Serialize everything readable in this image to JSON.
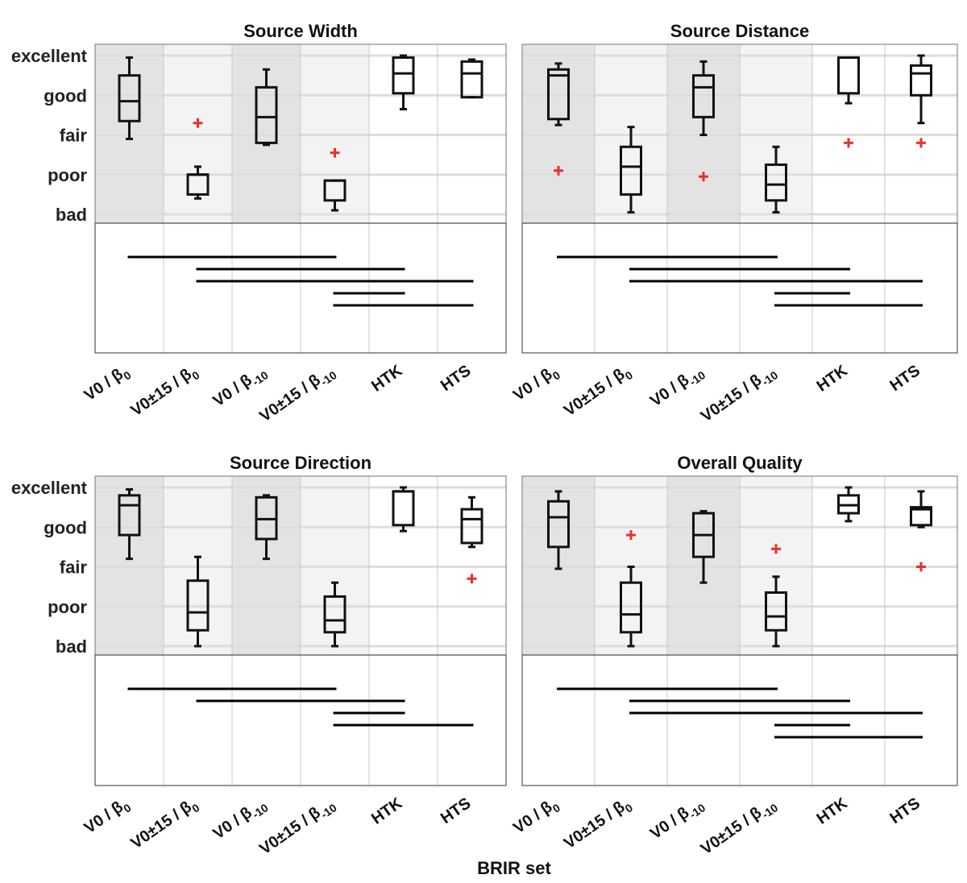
{
  "figure": {
    "xlabel": "BRIR set",
    "y_levels": [
      "excellent",
      "good",
      "fair",
      "poor",
      "bad"
    ],
    "colors": {
      "box": "#111111",
      "outlier": "#e8312a",
      "shade_dark": "#e3e3e3",
      "shade_light": "#f3f3f3",
      "grid": "#dddddd"
    }
  },
  "chart_data": [
    {
      "type": "boxplot",
      "title": "Source Width",
      "xlabel": "BRIR set",
      "ylabel": "",
      "ylim": [
        1,
        5
      ],
      "categories": [
        {
          "main": "V0 / β",
          "sub": "0"
        },
        {
          "main": "V0±15 / β",
          "sub": "0"
        },
        {
          "main": "V0 / β",
          "sub": "-10"
        },
        {
          "main": "V0±15 / β",
          "sub": "-10"
        },
        {
          "main": "HTK",
          "sub": ""
        },
        {
          "main": "HTS",
          "sub": ""
        }
      ],
      "boxes": [
        {
          "whisker_low": 2.9,
          "q1": 3.35,
          "median": 3.85,
          "q3": 4.5,
          "whisker_high": 4.95,
          "outliers": []
        },
        {
          "whisker_low": 1.4,
          "q1": 1.5,
          "median": 2.0,
          "q3": 2.0,
          "whisker_high": 2.2,
          "outliers": [
            3.3
          ]
        },
        {
          "whisker_low": 2.75,
          "q1": 2.8,
          "median": 3.45,
          "q3": 4.2,
          "whisker_high": 4.65,
          "outliers": []
        },
        {
          "whisker_low": 1.1,
          "q1": 1.35,
          "median": 1.85,
          "q3": 1.85,
          "whisker_high": 1.85,
          "outliers": [
            2.55
          ]
        },
        {
          "whisker_low": 3.65,
          "q1": 4.05,
          "median": 4.55,
          "q3": 4.95,
          "whisker_high": 5.0,
          "outliers": []
        },
        {
          "whisker_low": 3.95,
          "q1": 3.95,
          "median": 4.55,
          "q3": 4.85,
          "whisker_high": 4.9,
          "outliers": []
        }
      ],
      "significance_pairs": [
        [
          1,
          4
        ],
        [
          2,
          5
        ],
        [
          2,
          6
        ],
        [
          4,
          5
        ],
        [
          4,
          6
        ]
      ]
    },
    {
      "type": "boxplot",
      "title": "Source Distance",
      "xlabel": "BRIR set",
      "ylabel": "",
      "ylim": [
        1,
        5
      ],
      "categories": [
        {
          "main": "V0 / β",
          "sub": "0"
        },
        {
          "main": "V0±15 / β",
          "sub": "0"
        },
        {
          "main": "V0 / β",
          "sub": "-10"
        },
        {
          "main": "V0±15 / β",
          "sub": "-10"
        },
        {
          "main": "HTK",
          "sub": ""
        },
        {
          "main": "HTS",
          "sub": ""
        }
      ],
      "boxes": [
        {
          "whisker_low": 3.25,
          "q1": 3.4,
          "median": 4.5,
          "q3": 4.65,
          "whisker_high": 4.8,
          "outliers": [
            2.1
          ]
        },
        {
          "whisker_low": 1.05,
          "q1": 1.5,
          "median": 2.2,
          "q3": 2.7,
          "whisker_high": 3.2,
          "outliers": []
        },
        {
          "whisker_low": 3.0,
          "q1": 3.45,
          "median": 4.2,
          "q3": 4.5,
          "whisker_high": 4.85,
          "outliers": [
            1.95
          ]
        },
        {
          "whisker_low": 1.05,
          "q1": 1.35,
          "median": 1.75,
          "q3": 2.25,
          "whisker_high": 2.7,
          "outliers": []
        },
        {
          "whisker_low": 3.8,
          "q1": 4.05,
          "median": 4.95,
          "q3": 4.95,
          "whisker_high": 4.95,
          "outliers": [
            2.8
          ]
        },
        {
          "whisker_low": 3.3,
          "q1": 4.0,
          "median": 4.55,
          "q3": 4.75,
          "whisker_high": 5.0,
          "outliers": [
            2.8
          ]
        }
      ],
      "significance_pairs": [
        [
          1,
          4
        ],
        [
          2,
          5
        ],
        [
          2,
          6
        ],
        [
          4,
          5
        ],
        [
          4,
          6
        ]
      ]
    },
    {
      "type": "boxplot",
      "title": "Source Direction",
      "xlabel": "BRIR set",
      "ylabel": "",
      "ylim": [
        1,
        5
      ],
      "categories": [
        {
          "main": "V0 / β",
          "sub": "0"
        },
        {
          "main": "V0±15 / β",
          "sub": "0"
        },
        {
          "main": "V0 / β",
          "sub": "-10"
        },
        {
          "main": "V0±15 / β",
          "sub": "-10"
        },
        {
          "main": "HTK",
          "sub": ""
        },
        {
          "main": "HTS",
          "sub": ""
        }
      ],
      "boxes": [
        {
          "whisker_low": 3.2,
          "q1": 3.8,
          "median": 4.55,
          "q3": 4.8,
          "whisker_high": 4.95,
          "outliers": []
        },
        {
          "whisker_low": 1.0,
          "q1": 1.4,
          "median": 1.85,
          "q3": 2.65,
          "whisker_high": 3.25,
          "outliers": []
        },
        {
          "whisker_low": 3.2,
          "q1": 3.7,
          "median": 4.2,
          "q3": 4.75,
          "whisker_high": 4.8,
          "outliers": []
        },
        {
          "whisker_low": 1.0,
          "q1": 1.35,
          "median": 1.65,
          "q3": 2.25,
          "whisker_high": 2.6,
          "outliers": []
        },
        {
          "whisker_low": 3.9,
          "q1": 4.05,
          "median": 4.9,
          "q3": 4.9,
          "whisker_high": 5.0,
          "outliers": []
        },
        {
          "whisker_low": 3.5,
          "q1": 3.6,
          "median": 4.2,
          "q3": 4.45,
          "whisker_high": 4.75,
          "outliers": [
            2.7
          ]
        }
      ],
      "significance_pairs": [
        [
          1,
          4
        ],
        [
          2,
          5
        ],
        [
          4,
          5
        ],
        [
          4,
          6
        ]
      ]
    },
    {
      "type": "boxplot",
      "title": "Overall Quality",
      "xlabel": "BRIR set",
      "ylabel": "",
      "ylim": [
        1,
        5
      ],
      "categories": [
        {
          "main": "V0 / β",
          "sub": "0"
        },
        {
          "main": "V0±15 / β",
          "sub": "0"
        },
        {
          "main": "V0 / β",
          "sub": "-10"
        },
        {
          "main": "V0±15 / β",
          "sub": "-10"
        },
        {
          "main": "HTK",
          "sub": ""
        },
        {
          "main": "HTS",
          "sub": ""
        }
      ],
      "boxes": [
        {
          "whisker_low": 2.95,
          "q1": 3.5,
          "median": 4.25,
          "q3": 4.65,
          "whisker_high": 4.9,
          "outliers": []
        },
        {
          "whisker_low": 1.0,
          "q1": 1.35,
          "median": 1.8,
          "q3": 2.6,
          "whisker_high": 3.0,
          "outliers": [
            3.8
          ]
        },
        {
          "whisker_low": 2.6,
          "q1": 3.25,
          "median": 3.8,
          "q3": 4.35,
          "whisker_high": 4.4,
          "outliers": []
        },
        {
          "whisker_low": 1.0,
          "q1": 1.4,
          "median": 1.75,
          "q3": 2.35,
          "whisker_high": 2.75,
          "outliers": [
            3.45
          ]
        },
        {
          "whisker_low": 4.15,
          "q1": 4.35,
          "median": 4.55,
          "q3": 4.8,
          "whisker_high": 5.0,
          "outliers": []
        },
        {
          "whisker_low": 4.0,
          "q1": 4.05,
          "median": 4.45,
          "q3": 4.5,
          "whisker_high": 4.9,
          "outliers": [
            3.0
          ]
        }
      ],
      "significance_pairs": [
        [
          1,
          4
        ],
        [
          2,
          5
        ],
        [
          2,
          6
        ],
        [
          4,
          5
        ],
        [
          4,
          6
        ]
      ]
    }
  ]
}
